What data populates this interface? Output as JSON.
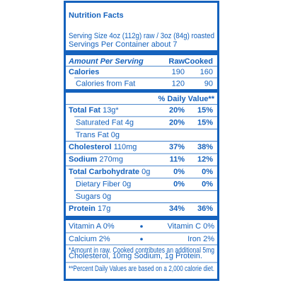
{
  "header": {
    "title": "Nutrition Facts",
    "serving_size": "Serving Size 4oz (112g) raw / 3oz (84g) roasted",
    "servings_per_container": "Servings Per Container about 7"
  },
  "columns": {
    "amount_per_serving": "Amount Per Serving",
    "raw": "Raw",
    "cooked": "Cooked"
  },
  "calories": [
    {
      "name": "Calories",
      "raw": "190",
      "cooked": "160",
      "bold": true,
      "indent": false
    },
    {
      "name": "Calories from Fat",
      "raw": "120",
      "cooked": "90",
      "bold": false,
      "indent": true
    }
  ],
  "daily_value_heading": "% Daily Value**",
  "nutrients": [
    {
      "name": "Total Fat",
      "amount": "13g*",
      "raw": "20%",
      "cooked": "15%",
      "bold": true,
      "indent": false
    },
    {
      "name": "Saturated Fat",
      "amount": "4g",
      "raw": "20%",
      "cooked": "15%",
      "bold": false,
      "indent": true
    },
    {
      "name": "Trans Fat",
      "amount": "0g",
      "bold": false,
      "indent": true
    },
    {
      "name": "Cholesterol",
      "amount": "110mg",
      "raw": "37%",
      "cooked": "38%",
      "bold": true,
      "indent": false
    },
    {
      "name": "Sodium",
      "amount": "270mg",
      "raw": "11%",
      "cooked": "12%",
      "bold": true,
      "indent": false
    },
    {
      "name": "Total Carbohydrate",
      "amount": "0g",
      "raw": "0%",
      "cooked": "0%",
      "bold": true,
      "indent": false
    },
    {
      "name": "Dietary Fiber",
      "amount": "0g",
      "raw": "0%",
      "cooked": "0%",
      "bold": false,
      "indent": true
    },
    {
      "name": "Sugars",
      "amount": "0g",
      "bold": false,
      "indent": true
    },
    {
      "name": "Protein",
      "amount": "17g",
      "raw": "34%",
      "cooked": "36%",
      "bold": true,
      "indent": false
    }
  ],
  "vitamins": [
    {
      "left": "Vitamin A 0%",
      "right": "Vitamin C 0%"
    },
    {
      "left": "Calcium 2%",
      "right": "Iron 2%"
    }
  ],
  "footnotes": [
    "*Amount in raw. Cooked contributes an additional 5mg",
    "Cholesterol, 10mg Sodium, 1g Protein.",
    "**Percent Daily Values are based on a 2,000 calorie diet."
  ]
}
